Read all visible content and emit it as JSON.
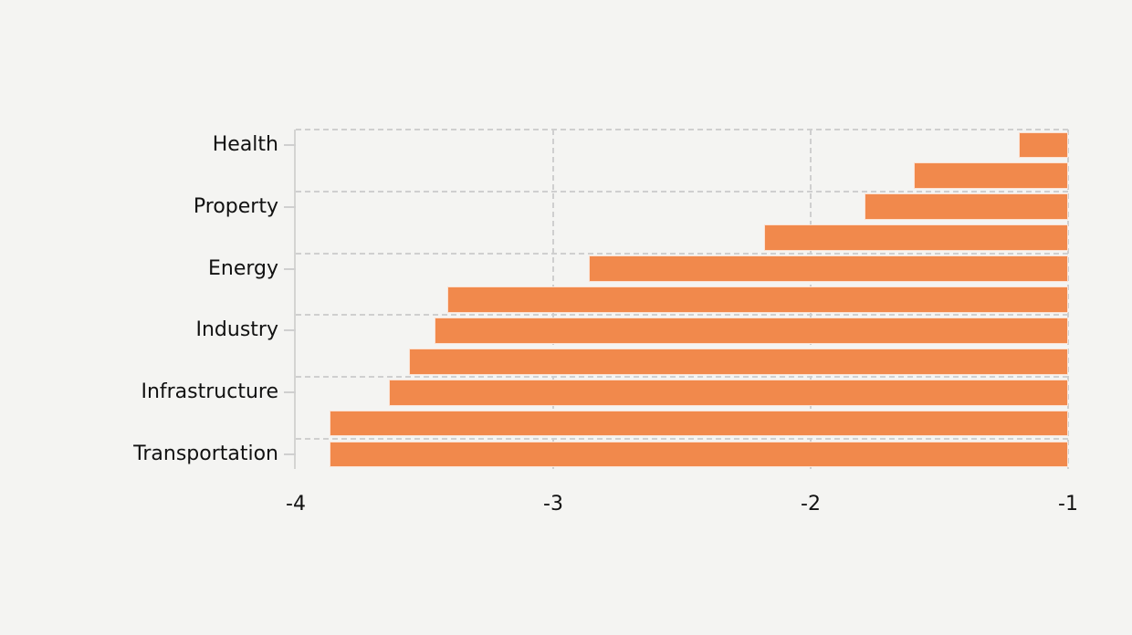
{
  "page": {
    "background": "#f4f4f2"
  },
  "chart_data": {
    "type": "bar",
    "orientation": "horizontal",
    "title": "",
    "xlabel": "",
    "ylabel": "",
    "xlim": [
      -4,
      -1
    ],
    "x_tick_values": [
      -4,
      -3,
      -2,
      -1
    ],
    "x_tick_labels": [
      "-4",
      "-3",
      "-2",
      "-1"
    ],
    "bars_anchored_at": -1,
    "grid_style": "dashed",
    "legend": "none",
    "bar_color": "#f1894c",
    "grid_color": "#cfcfcf",
    "axis_color": "#d4d4d2",
    "text_color": "#111111",
    "categories": [
      "Health",
      "Property",
      "Energy",
      "Industry",
      "Infrastructure",
      "Transportation"
    ],
    "bars_order": "top-to-bottom",
    "bars": [
      {
        "label": "Health",
        "value": -1.19
      },
      {
        "label": "",
        "value": -1.6
      },
      {
        "label": "Property",
        "value": -1.79
      },
      {
        "label": "",
        "value": -2.18
      },
      {
        "label": "Energy",
        "value": -2.86
      },
      {
        "label": "",
        "value": -3.41
      },
      {
        "label": "Industry",
        "value": -3.46
      },
      {
        "label": "",
        "value": -3.56
      },
      {
        "label": "Infrastructure",
        "value": -3.64
      },
      {
        "label": "",
        "value": -3.87
      },
      {
        "label": "Transportation",
        "value": -3.87
      }
    ]
  }
}
